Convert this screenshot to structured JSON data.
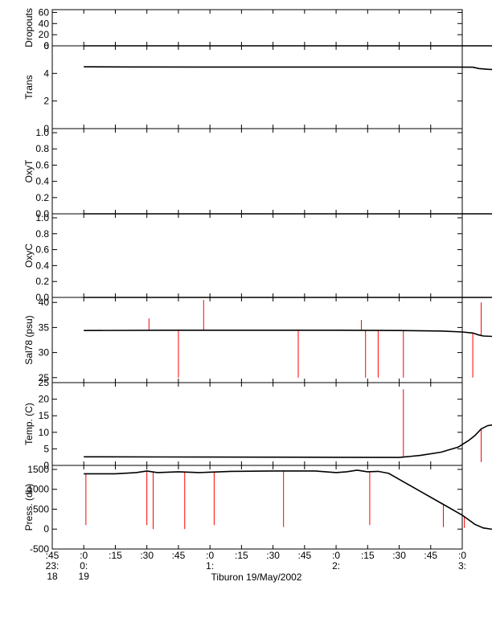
{
  "chart_data": {
    "type": "line",
    "title": "",
    "xlabel": "Tiburon 19/May/2002",
    "x_ticks": [
      {
        "l1": ":45",
        "l2": "23:",
        "l3": "18"
      },
      {
        "l1": ":0",
        "l2": "0:",
        "l3": "19"
      },
      {
        "l1": ":15",
        "l2": "",
        "l3": ""
      },
      {
        "l1": ":30",
        "l2": "",
        "l3": ""
      },
      {
        "l1": ":45",
        "l2": "",
        "l3": ""
      },
      {
        "l1": ":0",
        "l2": "1:",
        "l3": ""
      },
      {
        "l1": ":15",
        "l2": "",
        "l3": ""
      },
      {
        "l1": ":30",
        "l2": "",
        "l3": ""
      },
      {
        "l1": ":45",
        "l2": "",
        "l3": ""
      },
      {
        "l1": ":0",
        "l2": "2:",
        "l3": ""
      },
      {
        "l1": ":15",
        "l2": "",
        "l3": ""
      },
      {
        "l1": ":30",
        "l2": "",
        "l3": ""
      },
      {
        "l1": ":45",
        "l2": "",
        "l3": ""
      },
      {
        "l1": ":0",
        "l2": "3:",
        "l3": ""
      }
    ],
    "x_range_minutes": [
      -15,
      180
    ],
    "main_color": "#000000",
    "spike_color": "#ff0000",
    "grid": false,
    "panels": [
      {
        "ylabel": "Dropouts",
        "ylim": [
          0,
          65
        ],
        "yticks": [
          "0",
          "20",
          "40",
          "60"
        ],
        "ytick_values": [
          0,
          20,
          40,
          60
        ],
        "x": [
          0,
          195
        ],
        "y": [
          0,
          0
        ],
        "spikes": []
      },
      {
        "ylabel": "Trans",
        "ylim": [
          0,
          6
        ],
        "yticks": [
          "0",
          "2",
          "4",
          "6"
        ],
        "ytick_values": [
          0,
          2,
          4,
          6
        ],
        "x": [
          0,
          20,
          60,
          100,
          140,
          175,
          185,
          188,
          192,
          195
        ],
        "y": [
          4.48,
          4.47,
          4.46,
          4.46,
          4.46,
          4.46,
          4.45,
          4.35,
          4.3,
          4.28
        ],
        "spikes": [
          {
            "x": 195,
            "y": 1.2
          }
        ]
      },
      {
        "ylabel": "OxyT",
        "ylim": [
          0,
          1.05
        ],
        "yticks": [
          "0.0",
          "0.2",
          "0.4",
          "0.6",
          "0.8",
          "1.0"
        ],
        "ytick_values": [
          0,
          0.2,
          0.4,
          0.6,
          0.8,
          1.0
        ],
        "x": [
          0,
          195
        ],
        "y": [
          0,
          0
        ],
        "spikes": []
      },
      {
        "ylabel": "OxyC",
        "ylim": [
          0,
          1.05
        ],
        "yticks": [
          "0.0",
          "0.2",
          "0.4",
          "0.6",
          "0.8",
          "1.0"
        ],
        "ytick_values": [
          0,
          0.2,
          0.4,
          0.6,
          0.8,
          1.0
        ],
        "x": [
          0,
          195
        ],
        "y": [
          0,
          0
        ],
        "spikes": []
      },
      {
        "ylabel": "Sal78 (psu)",
        "ylim": [
          24,
          41
        ],
        "yticks": [
          "25",
          "30",
          "35",
          "40"
        ],
        "ytick_values": [
          25,
          30,
          35,
          40
        ],
        "x": [
          0,
          40,
          80,
          120,
          150,
          170,
          180,
          185,
          188,
          190,
          195
        ],
        "y": [
          34.4,
          34.45,
          34.45,
          34.45,
          34.4,
          34.3,
          34.1,
          33.9,
          33.5,
          33.3,
          33.2
        ],
        "spikes": [
          {
            "x": 31,
            "y": 36.8
          },
          {
            "x": 45,
            "y": 25
          },
          {
            "x": 57,
            "y": 40.5
          },
          {
            "x": 102,
            "y": 25
          },
          {
            "x": 132,
            "y": 36.5
          },
          {
            "x": 134,
            "y": 25
          },
          {
            "x": 140,
            "y": 25
          },
          {
            "x": 152,
            "y": 25
          },
          {
            "x": 185,
            "y": 25
          },
          {
            "x": 189,
            "y": 40
          },
          {
            "x": 195,
            "y": 25
          }
        ]
      },
      {
        "ylabel": "Temp. (C)",
        "ylim": [
          0,
          25
        ],
        "yticks": [
          "0",
          "5",
          "10",
          "15",
          "20",
          "25"
        ],
        "ytick_values": [
          0,
          5,
          10,
          15,
          20,
          25
        ],
        "x": [
          0,
          40,
          80,
          120,
          150,
          160,
          170,
          178,
          183,
          186,
          189,
          192,
          195
        ],
        "y": [
          2.6,
          2.55,
          2.5,
          2.45,
          2.4,
          3.0,
          4.0,
          5.5,
          7.5,
          9.0,
          11.0,
          12.0,
          12.3
        ],
        "spikes": [
          {
            "x": 152,
            "y": 23
          },
          {
            "x": 189,
            "y": 1.0
          }
        ]
      },
      {
        "ylabel": "Press. (db)",
        "ylim": [
          -500,
          1600
        ],
        "yticks": [
          "-500",
          "0",
          "500",
          "1000",
          "1500"
        ],
        "ytick_values": [
          -500,
          0,
          500,
          1000,
          1500
        ],
        "x": [
          0,
          15,
          25,
          30,
          35,
          45,
          55,
          70,
          90,
          110,
          120,
          125,
          130,
          135,
          140,
          145,
          150,
          160,
          170,
          180,
          186,
          190,
          195
        ],
        "y": [
          1390,
          1390,
          1420,
          1460,
          1420,
          1440,
          1420,
          1450,
          1460,
          1460,
          1420,
          1440,
          1480,
          1440,
          1450,
          1400,
          1250,
          950,
          650,
          350,
          120,
          30,
          -10
        ],
        "spikes": [
          {
            "x": 1,
            "y": 100
          },
          {
            "x": 30,
            "y": 100
          },
          {
            "x": 33,
            "y": 0
          },
          {
            "x": 48,
            "y": 0
          },
          {
            "x": 62,
            "y": 100
          },
          {
            "x": 95,
            "y": 50
          },
          {
            "x": 136,
            "y": 100
          },
          {
            "x": 171,
            "y": 50
          },
          {
            "x": 181,
            "y": 30
          }
        ]
      }
    ]
  }
}
